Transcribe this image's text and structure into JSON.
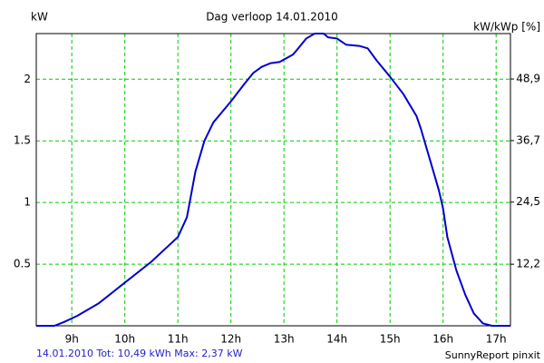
{
  "chart_data": {
    "type": "line",
    "title": "Dag  verloop 14.01.2010",
    "y_label": "kW",
    "y2_label": "kW/kWp [%]",
    "annotations": [
      "14.01.2010 Tot: 10,49 kWh Max: 2,37 kW",
      "SunnyReport pinxit"
    ],
    "x": [
      8.33,
      8.67,
      8.85,
      9.1,
      9.5,
      10,
      10.5,
      11,
      11.17,
      11.33,
      11.5,
      11.67,
      12,
      12.25,
      12.42,
      12.58,
      12.75,
      12.92,
      13.17,
      13.25,
      13.42,
      13.58,
      13.75,
      13.83,
      14,
      14.17,
      14.42,
      14.58,
      14.75,
      15,
      15.25,
      15.5,
      15.58,
      15.75,
      15.92,
      16,
      16.08,
      16.25,
      16.42,
      16.58,
      16.75,
      16.92,
      17.27
    ],
    "series": [
      {
        "color": "#0000cc",
        "values": [
          0,
          0,
          0.03,
          0.08,
          0.18,
          0.35,
          0.52,
          0.72,
          0.88,
          1.25,
          1.5,
          1.65,
          1.82,
          1.96,
          2.05,
          2.1,
          2.13,
          2.14,
          2.2,
          2.24,
          2.33,
          2.37,
          2.37,
          2.34,
          2.33,
          2.28,
          2.27,
          2.25,
          2.15,
          2.02,
          1.88,
          1.7,
          1.6,
          1.35,
          1.1,
          0.95,
          0.72,
          0.45,
          0.25,
          0.1,
          0.02,
          0,
          0
        ]
      }
    ],
    "xlim": [
      8.33,
      17.27
    ],
    "xticks": [
      {
        "value": 9,
        "label": "9h"
      },
      {
        "value": 10,
        "label": "10h"
      },
      {
        "value": 11,
        "label": "11h"
      },
      {
        "value": 12,
        "label": "12h"
      },
      {
        "value": 13,
        "label": "13h"
      },
      {
        "value": 14,
        "label": "14h"
      },
      {
        "value": 15,
        "label": "15h"
      },
      {
        "value": 16,
        "label": "16h"
      },
      {
        "value": 17,
        "label": "17h"
      }
    ],
    "ylim": [
      0,
      2.37
    ],
    "yticks": [
      0.5,
      1,
      1.5,
      2
    ],
    "y2lim": [
      0,
      57.9
    ],
    "y2ticks": [
      {
        "value": 12.2,
        "label": "12,2"
      },
      {
        "value": 24.5,
        "label": "24,5"
      },
      {
        "value": 36.7,
        "label": "36,7"
      },
      {
        "value": 48.9,
        "label": "48,9"
      }
    ],
    "grid": true,
    "grid_color": "#00cc00"
  }
}
